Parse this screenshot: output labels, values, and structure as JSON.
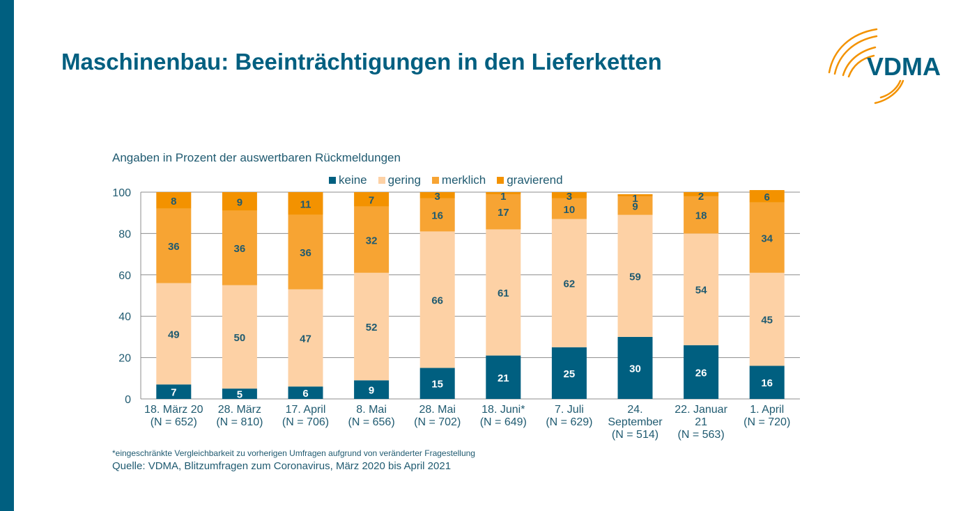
{
  "header": {
    "title": "Maschinenbau: Beeinträchtigungen in den Lieferketten",
    "logo_text": "VDMA"
  },
  "colors": {
    "brand_blue": "#005f80",
    "keine": "#005f80",
    "gering": "#fdd1a5",
    "merklich": "#f7a433",
    "gravierend": "#f39200",
    "text": "#1f5a70",
    "grid": "#8c8c8c"
  },
  "chart_data": {
    "type": "bar",
    "stacked": true,
    "title": "",
    "subtitle": "Angaben in Prozent der auswertbaren Rückmeldungen",
    "xlabel": "",
    "ylabel": "",
    "ylim": [
      0,
      100
    ],
    "yticks": [
      0,
      20,
      40,
      60,
      80,
      100
    ],
    "grid": true,
    "legend_position": "top",
    "categories": [
      [
        "18. März 20",
        "(N = 652)"
      ],
      [
        "28. März",
        "(N = 810)"
      ],
      [
        "17. April",
        "(N = 706)"
      ],
      [
        "8. Mai",
        "(N = 656)"
      ],
      [
        "28. Mai",
        "(N = 702)"
      ],
      [
        "18. Juni*",
        "(N = 649)"
      ],
      [
        "7. Juli",
        "(N = 629)"
      ],
      [
        "24.",
        "September",
        "(N = 514)"
      ],
      [
        "22. Januar",
        "21",
        "(N = 563)"
      ],
      [
        "1. April",
        "(N = 720)"
      ]
    ],
    "series": [
      {
        "name": "keine",
        "color_key": "keine",
        "label_color": "#ffffff",
        "values": [
          7,
          5,
          6,
          9,
          15,
          21,
          25,
          30,
          26,
          16
        ]
      },
      {
        "name": "gering",
        "color_key": "gering",
        "label_color": "#1f5a70",
        "values": [
          49,
          50,
          47,
          52,
          66,
          61,
          62,
          59,
          54,
          45
        ]
      },
      {
        "name": "merklich",
        "color_key": "merklich",
        "label_color": "#1f5a70",
        "values": [
          36,
          36,
          36,
          32,
          16,
          17,
          10,
          9,
          18,
          34
        ]
      },
      {
        "name": "gravierend",
        "color_key": "gravierend",
        "label_color": "#1f5a70",
        "values": [
          8,
          9,
          11,
          7,
          3,
          1,
          3,
          1,
          2,
          6
        ]
      }
    ]
  },
  "footer": {
    "footnote": "*eingeschränkte Vergleichbarkeit zu vorherigen Umfragen aufgrund von veränderter Fragestellung",
    "source": "Quelle: VDMA, Blitzumfragen zum Coronavirus, März 2020 bis April 2021"
  }
}
